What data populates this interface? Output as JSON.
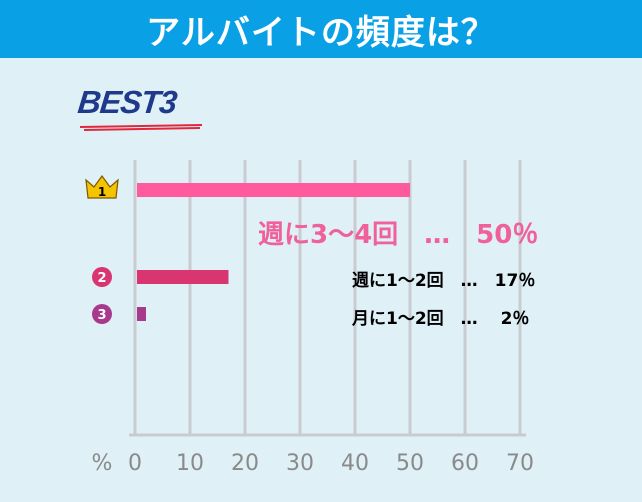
{
  "title": "アルバイトの頻度は？",
  "badge": "BEST3",
  "colors": {
    "header": "#0aa0e6",
    "background": "#dff0f7",
    "grid": "#c8ccd0",
    "bar1": "#ff5a9e",
    "bar2": "#d93570",
    "bar3": "#a83a8e",
    "crown": "#f5c400"
  },
  "chart_data": {
    "type": "bar",
    "orientation": "horizontal",
    "categories": [
      "週に3〜4回",
      "週に1〜2回",
      "月に1〜2回"
    ],
    "values": [
      50,
      17,
      2
    ],
    "ranks": [
      "1",
      "2",
      "3"
    ],
    "xlabel": "%",
    "xlim": [
      0,
      70
    ],
    "xticks": [
      "0",
      "10",
      "20",
      "30",
      "40",
      "50",
      "60",
      "70"
    ],
    "grid": true,
    "data_labels": [
      "週に3〜4回　…　50％",
      "週に1〜2回　…　17％",
      "月に1〜2回　…　 2％"
    ]
  }
}
